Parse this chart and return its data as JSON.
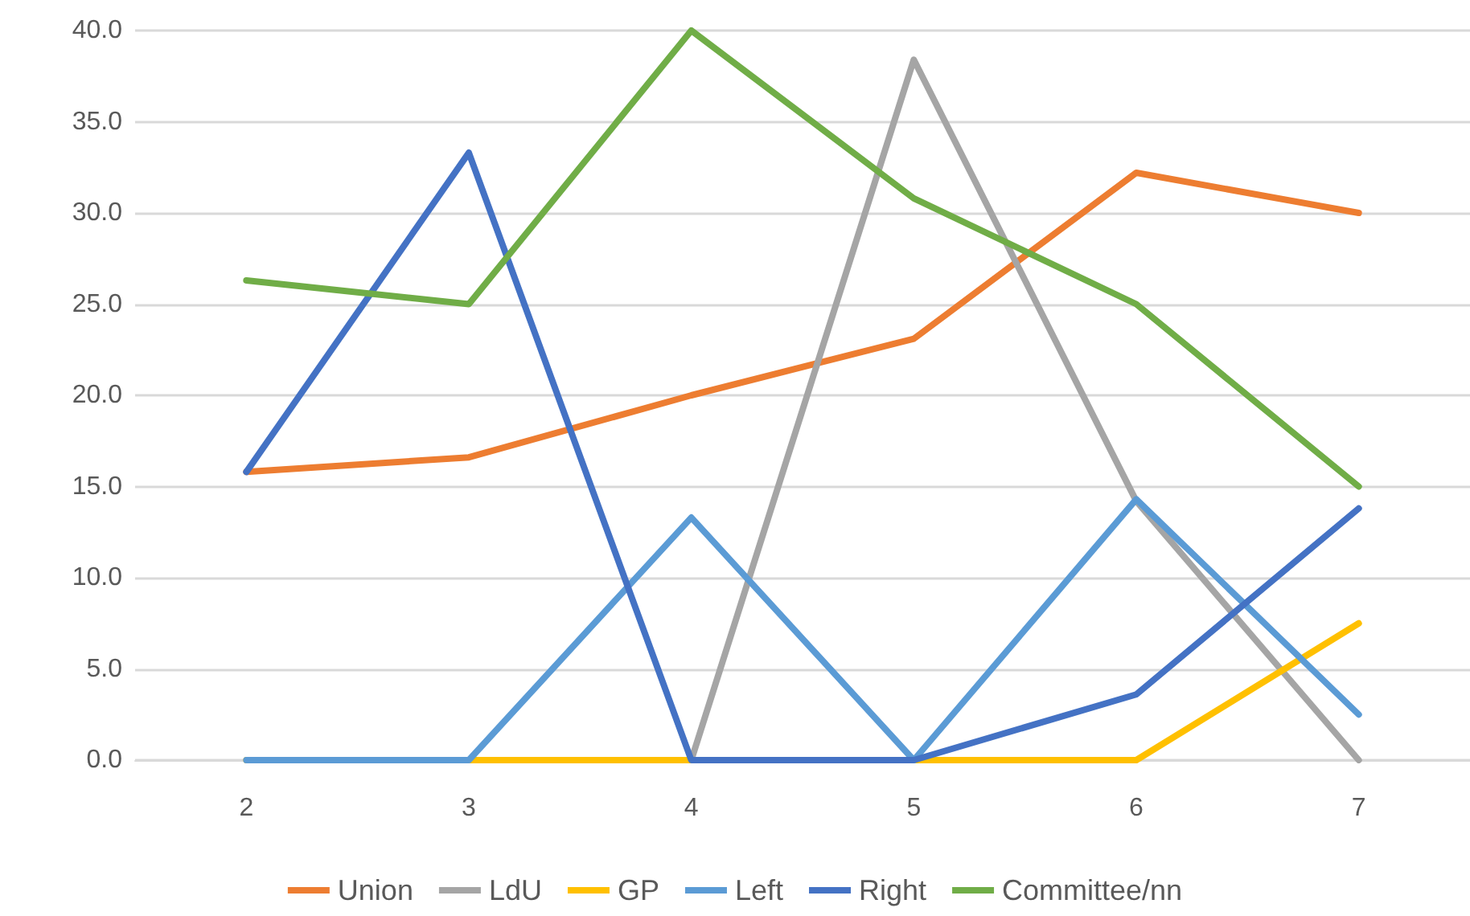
{
  "chart_data": {
    "type": "line",
    "categories": [
      "2",
      "3",
      "4",
      "5",
      "6",
      "7"
    ],
    "series": [
      {
        "name": "Union",
        "color": "#ed7d31",
        "values": [
          15.8,
          16.6,
          20.0,
          23.1,
          32.2,
          30.0
        ]
      },
      {
        "name": "LdU",
        "color": "#a5a5a5",
        "values": [
          null,
          null,
          0,
          38.4,
          14.2,
          0
        ]
      },
      {
        "name": "GP",
        "color": "#ffc000",
        "values": [
          0,
          0,
          0,
          0,
          0,
          7.5
        ]
      },
      {
        "name": "Left",
        "color": "#5b9bd5",
        "values": [
          0,
          0,
          13.3,
          0,
          14.3,
          2.5
        ]
      },
      {
        "name": "Right",
        "color": "#4472c4",
        "values": [
          15.8,
          33.3,
          0,
          0,
          3.6,
          13.8
        ]
      },
      {
        "name": "Committee/nn",
        "color": "#70ad47",
        "values": [
          26.3,
          25.0,
          40.0,
          30.8,
          25.0,
          15.0
        ]
      }
    ],
    "ylim": [
      0,
      40
    ],
    "yticks": [
      {
        "value": 0,
        "label": "0.0"
      },
      {
        "value": 5,
        "label": "5.0"
      },
      {
        "value": 10,
        "label": "10.0"
      },
      {
        "value": 15,
        "label": "15.0"
      },
      {
        "value": 20,
        "label": "20.0"
      },
      {
        "value": 25,
        "label": "25.0"
      },
      {
        "value": 30,
        "label": "30.0"
      },
      {
        "value": 35,
        "label": "35.0"
      },
      {
        "value": 40,
        "label": "40.0"
      }
    ],
    "grid": "y",
    "legend": "bottom",
    "marker": "none",
    "line_style": "solid"
  }
}
